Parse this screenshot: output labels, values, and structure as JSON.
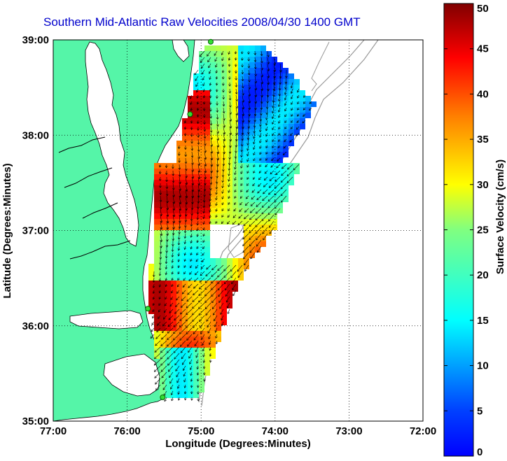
{
  "title": "Southern Mid-Atlantic Raw Velocities 2008/04/30 1400 GMT",
  "map": {
    "x_label": "Longitude (Degrees:Minutes)",
    "y_label": "Latitude (Degrees:Minutes)",
    "x_ticks": [
      "77:00",
      "76:00",
      "75:00",
      "74:00",
      "73:00",
      "72:00"
    ],
    "y_ticks": [
      "39:00",
      "38:00",
      "37:00",
      "36:00",
      "35:00"
    ],
    "lon_range": [
      -77,
      -72
    ],
    "lat_range": [
      35,
      39
    ],
    "grid": "dotted",
    "land_color": "#55f5a8",
    "coast_color": "#000000",
    "bathymetry_color": "#999999",
    "stations": [
      {
        "lon": -74.87,
        "lat": 38.98
      },
      {
        "lon": -75.15,
        "lat": 38.22
      },
      {
        "lon": -75.72,
        "lat": 36.18
      },
      {
        "lon": -75.52,
        "lat": 35.25
      }
    ]
  },
  "colorbar": {
    "label": "Surface Velocity (cm/s)",
    "ticks": [
      "50",
      "45",
      "40",
      "35",
      "30",
      "25",
      "20",
      "15",
      "10",
      "5",
      "0"
    ],
    "range": [
      0,
      50
    ],
    "colormap": "jet"
  }
}
